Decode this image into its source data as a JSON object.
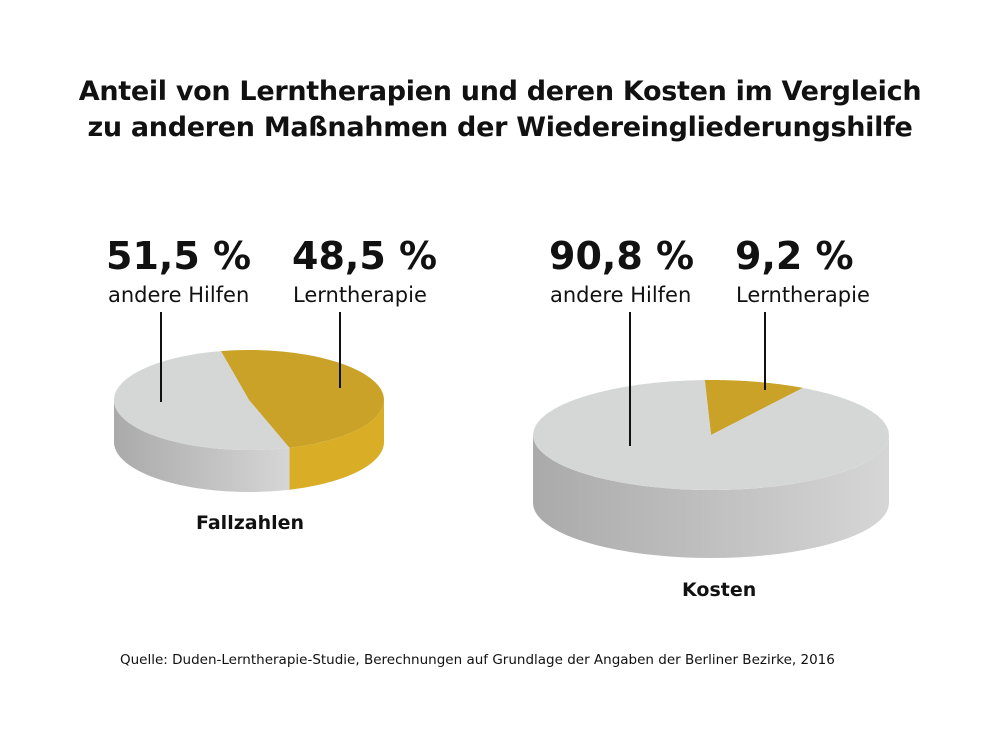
{
  "title_line1": "Anteil von Lerntherapien und deren Kosten im Vergleich",
  "title_line2": "zu anderen Maßnahmen der Wiedereingliederungshilfe",
  "source": "Quelle: Duden-Lerntherapie-Studie, Berechnungen auf Grundlage der Angaben der Berliner Bezirke, 2016",
  "colors": {
    "gold": "#c9a227",
    "gold_side": "#d9ad26",
    "gray": "#d5d6d6",
    "gray_side_dark": "#a9a9a9",
    "gray_side_light": "#d8d8d8"
  },
  "chart_data": [
    {
      "type": "pie",
      "title": "Fallzahlen",
      "slices": [
        {
          "label": "andere Hilfen",
          "value": 51.5,
          "value_label": "51,5 %"
        },
        {
          "label": "Lerntherapie",
          "value": 48.5,
          "value_label": "48,5 %"
        }
      ]
    },
    {
      "type": "pie",
      "title": "Kosten",
      "slices": [
        {
          "label": "andere Hilfen",
          "value": 90.8,
          "value_label": "90,8 %"
        },
        {
          "label": "Lerntherapie",
          "value": 9.2,
          "value_label": "9,2 %"
        }
      ]
    }
  ]
}
